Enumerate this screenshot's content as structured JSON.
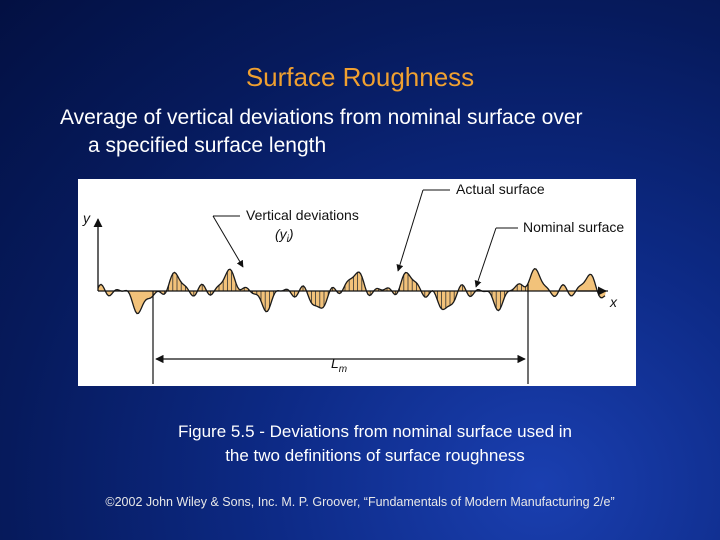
{
  "slide": {
    "title": "Surface Roughness",
    "bullet_line1": "Average of vertical deviations from nominal surface over",
    "bullet_line2": "a specified surface length",
    "caption_line1": "Figure 5.5 - Deviations from nominal surface used in",
    "caption_line2": "the two definitions of surface roughness",
    "footer": "©2002 John Wiley & Sons, Inc.  M. P. Groover, “Fundamentals of Modern Manufacturing 2/e”"
  },
  "diagram": {
    "label_actual_surface": "Actual surface",
    "label_vertical_deviations": "Vertical deviations",
    "label_yi_y": "(y",
    "label_yi_i": "i",
    "label_yi_close": ")",
    "label_nominal_surface": "Nominal surface",
    "label_y_axis": "y",
    "label_x_axis": "x",
    "label_length_L": "L",
    "label_length_m": "m",
    "colors": {
      "profile_fill": "#f2c27a",
      "profile_line": "#1a1a1a",
      "hatch": "#333333"
    }
  }
}
